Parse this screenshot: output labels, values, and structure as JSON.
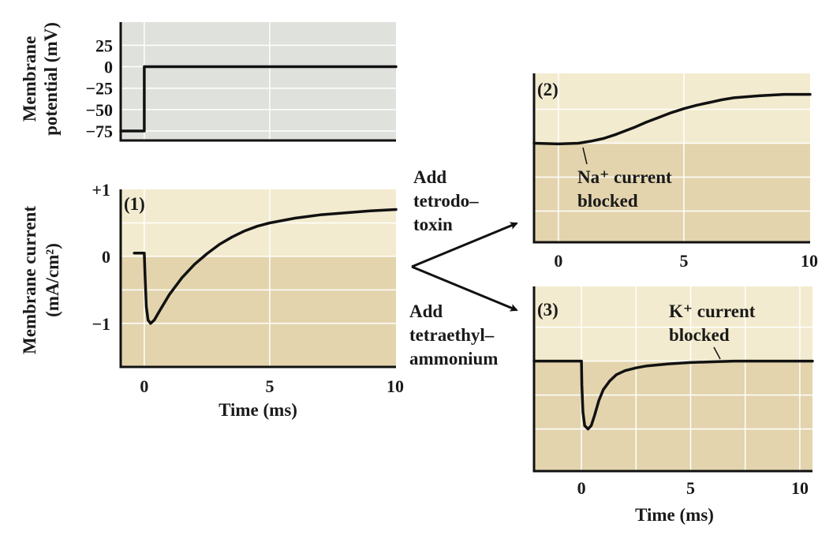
{
  "chart_data": [
    {
      "type": "line",
      "ylabel": [
        "Membrane",
        "potential (mV)"
      ],
      "xlim": [
        -0.94,
        10.03
      ],
      "ylim": [
        -86,
        52
      ],
      "yticks": [
        25,
        0,
        -25,
        -50,
        -75
      ],
      "yticklabels": [
        "25",
        "0",
        "−25",
        "−50",
        "−75"
      ],
      "xgrid": [
        0,
        5
      ],
      "ygrid": [
        25,
        0,
        -25,
        -50,
        -75
      ],
      "background": "#dee1dc",
      "series": [
        {
          "points": [
            [
              -0.94,
              -75
            ],
            [
              0,
              -75
            ],
            [
              0,
              0
            ],
            [
              10.03,
              0
            ]
          ]
        }
      ]
    },
    {
      "type": "line",
      "panel_label": "(1)",
      "ylabel": [
        "Membrane current",
        "(mA/cm²)"
      ],
      "xlabel": "Time (ms)",
      "xlim": [
        -0.94,
        10.03
      ],
      "ylim": [
        -1.65,
        1.0
      ],
      "xticks": [
        0,
        5,
        10
      ],
      "xticklabels": [
        "0",
        "5",
        "10"
      ],
      "yticks": [
        1,
        0,
        -1
      ],
      "yticklabels": [
        "+1",
        "0",
        "−1"
      ],
      "xgrid": [
        0,
        5
      ],
      "ygrid": [
        0.5,
        0,
        -0.5,
        -1
      ],
      "series": [
        {
          "points": [
            [
              -0.4,
              0.05
            ],
            [
              0,
              0.05
            ],
            [
              0.03,
              -0.3
            ],
            [
              0.08,
              -0.75
            ],
            [
              0.15,
              -0.95
            ],
            [
              0.25,
              -1.0
            ],
            [
              0.4,
              -0.95
            ],
            [
              0.6,
              -0.82
            ],
            [
              1,
              -0.57
            ],
            [
              1.5,
              -0.32
            ],
            [
              2,
              -0.12
            ],
            [
              2.5,
              0.04
            ],
            [
              3,
              0.18
            ],
            [
              3.5,
              0.29
            ],
            [
              4,
              0.38
            ],
            [
              4.5,
              0.45
            ],
            [
              5,
              0.5
            ],
            [
              6,
              0.57
            ],
            [
              7,
              0.62
            ],
            [
              8,
              0.65
            ],
            [
              9,
              0.68
            ],
            [
              10.03,
              0.7
            ]
          ]
        }
      ]
    },
    {
      "type": "line",
      "panel_label": "(2)",
      "xlim": [
        -0.97,
        10.03
      ],
      "ylim": [
        -1.46,
        1.03
      ],
      "xticks": [
        0,
        5,
        10
      ],
      "xticklabels": [
        "0",
        "5",
        "10"
      ],
      "xgrid": [
        0,
        5
      ],
      "ygrid": [
        0.5,
        0,
        -0.5,
        -1
      ],
      "annotation": [
        "Na⁺ current",
        "blocked"
      ],
      "series": [
        {
          "points": [
            [
              -0.97,
              0
            ],
            [
              0,
              -0.01
            ],
            [
              0.8,
              0
            ],
            [
              1.3,
              0.03
            ],
            [
              1.8,
              0.07
            ],
            [
              2.3,
              0.13
            ],
            [
              3,
              0.23
            ],
            [
              3.5,
              0.31
            ],
            [
              4,
              0.38
            ],
            [
              4.5,
              0.45
            ],
            [
              5,
              0.51
            ],
            [
              5.5,
              0.56
            ],
            [
              6,
              0.6
            ],
            [
              6.5,
              0.64
            ],
            [
              7,
              0.67
            ],
            [
              8,
              0.7
            ],
            [
              9,
              0.72
            ],
            [
              10.03,
              0.72
            ]
          ]
        }
      ]
    },
    {
      "type": "line",
      "panel_label": "(3)",
      "xlabel": "Time (ms)",
      "xlim": [
        -2.17,
        10.58
      ],
      "ylim": [
        -1.62,
        1.1
      ],
      "xticks": [
        0,
        5,
        10
      ],
      "xticklabels": [
        "0",
        "5",
        "10"
      ],
      "xgrid": [
        0,
        2.5,
        5,
        7.5,
        10
      ],
      "ygrid": [
        0.5,
        0,
        -0.5,
        -1
      ],
      "annotation": [
        "K⁺ current",
        "blocked"
      ],
      "series": [
        {
          "points": [
            [
              -2.17,
              0
            ],
            [
              0,
              0
            ],
            [
              0.02,
              -0.35
            ],
            [
              0.07,
              -0.75
            ],
            [
              0.15,
              -0.95
            ],
            [
              0.3,
              -1.0
            ],
            [
              0.45,
              -0.95
            ],
            [
              0.6,
              -0.8
            ],
            [
              0.8,
              -0.58
            ],
            [
              1.0,
              -0.42
            ],
            [
              1.3,
              -0.29
            ],
            [
              1.6,
              -0.2
            ],
            [
              2,
              -0.14
            ],
            [
              2.5,
              -0.1
            ],
            [
              3,
              -0.07
            ],
            [
              4,
              -0.04
            ],
            [
              5,
              -0.02
            ],
            [
              6,
              -0.01
            ],
            [
              7,
              0
            ],
            [
              10.58,
              0
            ]
          ]
        }
      ]
    }
  ],
  "colors": {
    "positive_region": "#f3ebcf",
    "negative_region": "#e3d4ad",
    "voltage_panel": "#dee1dc",
    "trace": "#111111"
  },
  "arrows": {
    "top_label": [
      "Add",
      "tetrodo–",
      "toxin"
    ],
    "bottom_label": [
      "Add",
      "tetraethyl–",
      "ammonium"
    ]
  }
}
